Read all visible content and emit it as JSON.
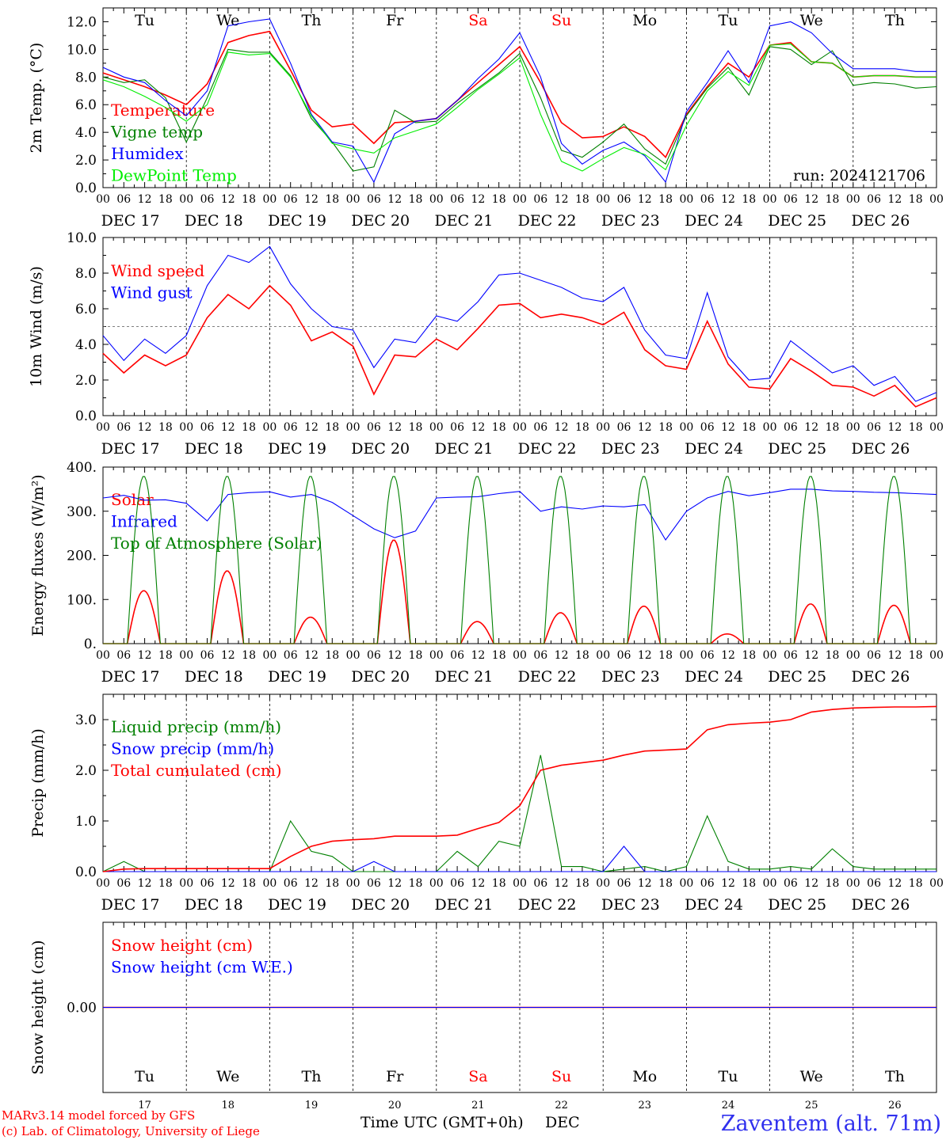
{
  "run_label": "run: 2024121706",
  "footer": {
    "model_line": "MARv3.14 model forced by GFS",
    "credit_line": "(c) Lab. of Climatology, University of Liege",
    "time_label": "Time UTC (GMT+0h)",
    "month_label": "DEC",
    "station": "Zaventem (alt. 71m)"
  },
  "days": {
    "names": [
      "Tu",
      "We",
      "Th",
      "Fr",
      "Sa",
      "Su",
      "Mo",
      "Tu",
      "We",
      "Th"
    ],
    "weekend_flags": [
      false,
      false,
      false,
      false,
      true,
      true,
      false,
      false,
      false,
      false
    ],
    "dates": [
      "DEC 17",
      "DEC 18",
      "DEC 19",
      "DEC 20",
      "DEC 21",
      "DEC 22",
      "DEC 23",
      "DEC 24",
      "DEC 25",
      "DEC 26"
    ],
    "numbers": [
      "17",
      "18",
      "19",
      "20",
      "21",
      "22",
      "23",
      "24",
      "25",
      "26"
    ],
    "hour_ticks": [
      "00",
      "06",
      "12",
      "18"
    ],
    "final_tick": "00"
  },
  "colors": {
    "red": "#ff0000",
    "green": "#008000",
    "blue": "#0000ff",
    "lightgreen": "#00ee00",
    "weekend": "#ff0000",
    "text": "#000000"
  },
  "chart_data": [
    {
      "type": "line",
      "ylabel": "2m Temp. (°C)",
      "ylim": [
        0,
        13
      ],
      "yticks": [
        "0.0",
        "2.0",
        "4.0",
        "6.0",
        "8.0",
        "10.0",
        "12.0"
      ],
      "x_hours": [
        0,
        6,
        12,
        18,
        24,
        30,
        36,
        42,
        48,
        54,
        60,
        66,
        72,
        78,
        84,
        90,
        96,
        102,
        108,
        114,
        120,
        126,
        132,
        138,
        144,
        150,
        156,
        162,
        168,
        174,
        180,
        186,
        192,
        198,
        204,
        210,
        216,
        222,
        228,
        234,
        240
      ],
      "series": [
        {
          "name": "Temperature",
          "color": "red",
          "values": [
            8.3,
            7.8,
            7.3,
            6.7,
            6.0,
            7.5,
            10.5,
            11.0,
            11.3,
            8.5,
            5.6,
            4.4,
            4.6,
            3.2,
            4.7,
            4.8,
            5.0,
            6.3,
            7.6,
            8.9,
            10.2,
            7.6,
            4.7,
            3.6,
            3.7,
            4.4,
            3.7,
            2.2,
            5.3,
            7.3,
            9.0,
            8.0,
            10.3,
            10.5,
            9.1,
            9.0,
            8.0,
            8.1,
            8.1,
            8.0,
            8.0
          ]
        },
        {
          "name": "Vigne temp",
          "color": "green",
          "values": [
            8.0,
            7.6,
            7.8,
            6.5,
            3.3,
            6.5,
            10.0,
            9.8,
            9.8,
            8.1,
            5.0,
            3.3,
            1.2,
            1.5,
            5.6,
            4.7,
            4.8,
            6.1,
            7.2,
            8.3,
            9.7,
            6.5,
            2.7,
            2.2,
            3.3,
            4.6,
            2.8,
            1.7,
            5.2,
            7.2,
            8.7,
            6.7,
            10.2,
            10.0,
            8.9,
            9.9,
            7.4,
            7.6,
            7.5,
            7.2,
            7.3
          ]
        },
        {
          "name": "Humidex",
          "color": "blue",
          "values": [
            8.7,
            8.0,
            7.6,
            6.3,
            5.2,
            7.0,
            11.7,
            12.0,
            12.2,
            9.0,
            5.3,
            3.3,
            3.0,
            0.4,
            3.9,
            4.8,
            5.0,
            6.3,
            7.9,
            9.3,
            11.2,
            8.0,
            3.2,
            1.7,
            2.7,
            3.3,
            2.3,
            0.4,
            5.5,
            7.6,
            9.9,
            7.6,
            11.7,
            12.0,
            11.2,
            9.7,
            8.6,
            8.6,
            8.6,
            8.4,
            8.4
          ]
        },
        {
          "name": "DewPoint Temp",
          "color": "lightgreen",
          "values": [
            7.8,
            7.3,
            6.6,
            5.8,
            4.8,
            6.0,
            9.8,
            9.6,
            9.7,
            8.0,
            5.2,
            3.2,
            2.8,
            2.5,
            3.6,
            4.1,
            4.6,
            5.8,
            7.1,
            8.2,
            9.4,
            5.3,
            1.9,
            1.2,
            2.1,
            2.9,
            2.4,
            1.3,
            4.5,
            7.0,
            8.4,
            7.4,
            10.3,
            10.4,
            9.1,
            9.0,
            8.0,
            8.1,
            8.1,
            8.0,
            8.0
          ]
        }
      ],
      "legend_placement": "top-left"
    },
    {
      "type": "line",
      "ylabel": "10m Wind (m/s)",
      "ylim": [
        0,
        10
      ],
      "yticks": [
        "0.0",
        "2.0",
        "4.0",
        "6.0",
        "8.0",
        "10.0"
      ],
      "reference_line": 5,
      "x_hours": [
        0,
        6,
        12,
        18,
        24,
        30,
        36,
        42,
        48,
        54,
        60,
        66,
        72,
        78,
        84,
        90,
        96,
        102,
        108,
        114,
        120,
        126,
        132,
        138,
        144,
        150,
        156,
        162,
        168,
        174,
        180,
        186,
        192,
        198,
        204,
        210,
        216,
        222,
        228,
        234,
        240
      ],
      "series": [
        {
          "name": "Wind speed",
          "color": "red",
          "values": [
            3.5,
            2.4,
            3.4,
            2.8,
            3.4,
            5.5,
            6.8,
            6.0,
            7.3,
            6.2,
            4.2,
            4.7,
            3.9,
            1.2,
            3.4,
            3.3,
            4.3,
            3.7,
            4.9,
            6.2,
            6.3,
            5.5,
            5.7,
            5.5,
            5.1,
            5.8,
            3.7,
            2.8,
            2.6,
            5.3,
            2.9,
            1.6,
            1.5,
            3.2,
            2.5,
            1.7,
            1.6,
            1.1,
            1.7,
            0.5,
            1.0
          ]
        },
        {
          "name": "Wind gust",
          "color": "blue",
          "values": [
            4.5,
            3.1,
            4.3,
            3.5,
            4.5,
            7.3,
            9.0,
            8.6,
            9.5,
            7.4,
            6.0,
            5.0,
            4.8,
            2.7,
            4.3,
            4.1,
            5.6,
            5.3,
            6.4,
            7.9,
            8.0,
            7.6,
            7.2,
            6.6,
            6.4,
            7.2,
            4.8,
            3.4,
            3.2,
            6.9,
            3.3,
            2.0,
            2.1,
            4.2,
            3.3,
            2.4,
            2.8,
            1.7,
            2.2,
            0.8,
            1.3
          ]
        }
      ],
      "legend_placement": "top-left"
    },
    {
      "type": "line",
      "ylabel": "Energy fluxes (W/m²)",
      "ylim": [
        0,
        400
      ],
      "yticks": [
        "0.",
        "100.",
        "200.",
        "300.",
        "400."
      ],
      "series": [
        {
          "name": "Solar",
          "color": "red",
          "peak_day_values": [
            120,
            165,
            60,
            235,
            50,
            70,
            85,
            22,
            90,
            87
          ]
        },
        {
          "name": "Infrared",
          "color": "blue",
          "x_hours": [
            0,
            6,
            12,
            18,
            24,
            30,
            36,
            42,
            48,
            54,
            60,
            66,
            72,
            78,
            84,
            90,
            96,
            102,
            108,
            114,
            120,
            126,
            132,
            138,
            144,
            150,
            156,
            162,
            168,
            174,
            180,
            186,
            192,
            198,
            204,
            210,
            216,
            222,
            228,
            234,
            240
          ],
          "values": [
            330,
            336,
            325,
            326,
            318,
            278,
            338,
            342,
            344,
            332,
            338,
            320,
            290,
            260,
            240,
            255,
            330,
            332,
            333,
            340,
            345,
            300,
            310,
            305,
            312,
            310,
            315,
            235,
            300,
            330,
            345,
            335,
            342,
            350,
            350,
            346,
            345,
            343,
            342,
            340,
            338
          ]
        },
        {
          "name": "Top of Atmosphere (Solar)",
          "color": "green",
          "peak_day_values": [
            380,
            380,
            380,
            380,
            380,
            380,
            380,
            380,
            380,
            380
          ]
        }
      ],
      "legend_placement": "top-left"
    },
    {
      "type": "line",
      "ylabel": "Precip (mm/h)",
      "ylim": [
        0,
        3.5
      ],
      "yticks": [
        "0.0",
        "1.0",
        "2.0",
        "3.0"
      ],
      "x_hours": [
        0,
        6,
        12,
        18,
        24,
        30,
        36,
        42,
        48,
        54,
        60,
        66,
        72,
        78,
        84,
        90,
        96,
        102,
        108,
        114,
        120,
        126,
        132,
        138,
        144,
        150,
        156,
        162,
        168,
        174,
        180,
        186,
        192,
        198,
        204,
        210,
        216,
        222,
        228,
        234,
        240
      ],
      "series": [
        {
          "name": "Liquid precip (mm/h)",
          "color": "green",
          "values": [
            0,
            0.2,
            0,
            0,
            0,
            0,
            0,
            0,
            0,
            1.0,
            0.4,
            0.3,
            0,
            0,
            0,
            0,
            0,
            0.4,
            0.1,
            0.6,
            0.5,
            2.3,
            0.1,
            0.1,
            0,
            0.05,
            0.1,
            0,
            0.1,
            1.1,
            0.2,
            0.05,
            0.05,
            0.1,
            0.05,
            0.45,
            0.1,
            0.05,
            0.05,
            0.05,
            0.05
          ]
        },
        {
          "name": "Snow precip (mm/h)",
          "color": "blue",
          "values": [
            0,
            0,
            0,
            0,
            0,
            0,
            0,
            0,
            0,
            0,
            0,
            0,
            0,
            0.2,
            0,
            0,
            0,
            0,
            0,
            0,
            0,
            0,
            0,
            0,
            0,
            0.5,
            0,
            0,
            0,
            0,
            0,
            0,
            0,
            0,
            0,
            0,
            0,
            0,
            0,
            0,
            0
          ]
        },
        {
          "name": "Total cumulated (cm)",
          "color": "red",
          "values": [
            0,
            0.05,
            0.06,
            0.06,
            0.06,
            0.06,
            0.06,
            0.06,
            0.06,
            0.3,
            0.5,
            0.6,
            0.63,
            0.65,
            0.7,
            0.7,
            0.7,
            0.72,
            0.85,
            0.97,
            1.3,
            2.0,
            2.1,
            2.15,
            2.2,
            2.3,
            2.38,
            2.4,
            2.42,
            2.8,
            2.9,
            2.93,
            2.95,
            3.0,
            3.15,
            3.2,
            3.23,
            3.24,
            3.25,
            3.25,
            3.26
          ]
        }
      ],
      "legend_placement": "top-left"
    },
    {
      "type": "line",
      "ylabel": "Snow height (cm)",
      "yticks": [
        "0.00"
      ],
      "series": [
        {
          "name": "Snow height (cm)",
          "color": "red",
          "values": [
            0,
            0
          ]
        },
        {
          "name": "Snow height (cm W.E.)",
          "color": "blue",
          "values": [
            0,
            0
          ]
        }
      ],
      "legend_placement": "top-left"
    }
  ]
}
